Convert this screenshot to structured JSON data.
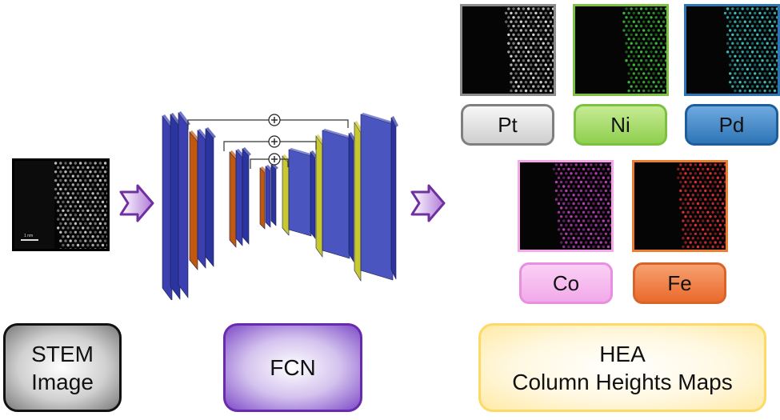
{
  "diagram": {
    "input": {
      "panel_label": "STEM Image",
      "box_line1": "STEM",
      "box_line2": "Image",
      "scale_text": "1 nm"
    },
    "network": {
      "box_label": "FCN",
      "skip_symbol": "⊕"
    },
    "output": {
      "box_line1": "HEA",
      "box_line2": "Column Heights Maps",
      "elements": [
        {
          "label": "Pt",
          "color": "#8c8c8c",
          "atom_color": "#dcdcdc",
          "box_fill": "#e9e9e9"
        },
        {
          "label": "Ni",
          "color": "#7dc142",
          "atom_color": "#3fbf3f",
          "box_fill": "#a9dc6f"
        },
        {
          "label": "Pd",
          "color": "#2e75b6",
          "atom_color": "#3fc7c7",
          "box_fill": "#4a8fd1"
        },
        {
          "label": "Co",
          "color": "#f4a8e8",
          "atom_color": "#c03fc0",
          "box_fill": "#f5b8ef"
        },
        {
          "label": "Fe",
          "color": "#ed7d31",
          "atom_color": "#e83232",
          "box_fill": "#f07a3c"
        }
      ]
    },
    "colors": {
      "arrow": "#7030a0",
      "layer_blue": "#2e3fa8",
      "layer_orange": "#c0580f",
      "layer_yellow": "#c8c830",
      "fcn_border": "#7030a0",
      "hea_border": "#ffd966"
    }
  }
}
